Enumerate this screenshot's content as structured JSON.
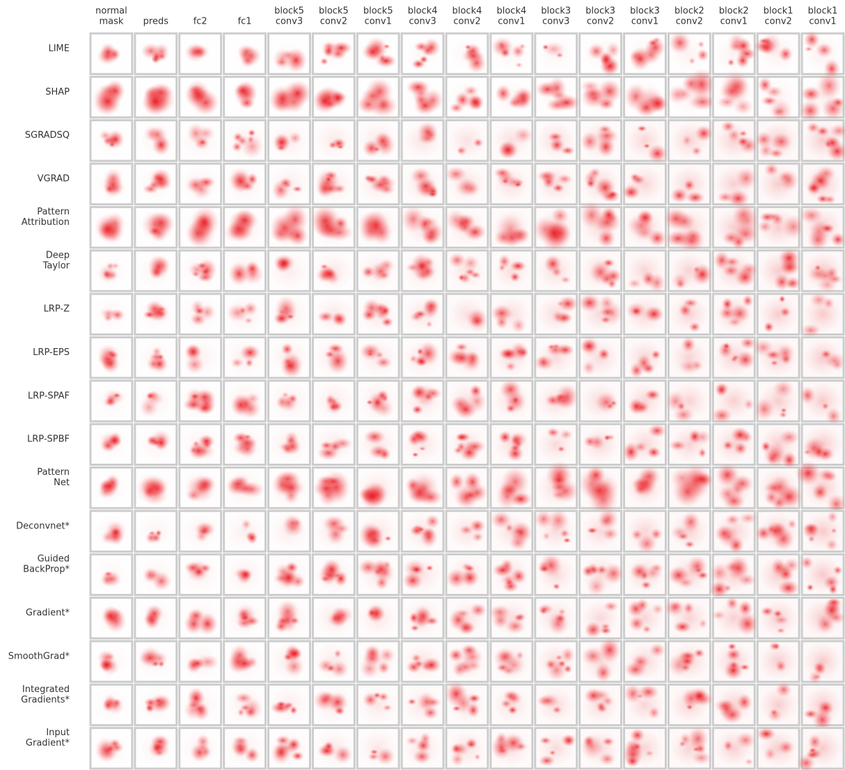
{
  "figure": {
    "columns": [
      [
        "normal",
        "mask"
      ],
      [
        "preds"
      ],
      [
        "fc2"
      ],
      [
        "fc1"
      ],
      [
        "block5",
        "conv3"
      ],
      [
        "block5",
        "conv2"
      ],
      [
        "block5",
        "conv1"
      ],
      [
        "block4",
        "conv3"
      ],
      [
        "block4",
        "conv2"
      ],
      [
        "block4",
        "conv1"
      ],
      [
        "block3",
        "conv3"
      ],
      [
        "block3",
        "conv2"
      ],
      [
        "block3",
        "conv1"
      ],
      [
        "block2",
        "conv2"
      ],
      [
        "block2",
        "conv1"
      ],
      [
        "block1",
        "conv2"
      ],
      [
        "block1",
        "conv1"
      ]
    ],
    "rows": [
      [
        "LIME"
      ],
      [
        "SHAP"
      ],
      [
        "SGRADSQ"
      ],
      [
        "VGRAD"
      ],
      [
        "Pattern",
        "Attribution"
      ],
      [
        "Deep",
        "Taylor"
      ],
      [
        "LRP-Z"
      ],
      [
        "LRP-EPS"
      ],
      [
        "LRP-SPAF"
      ],
      [
        "LRP-SPBF"
      ],
      [
        "Pattern",
        "Net"
      ],
      [
        "Deconvnet*"
      ],
      [
        "Guided",
        "BackProp*"
      ],
      [
        "Gradient*"
      ],
      [
        "SmoothGrad*"
      ],
      [
        "Integrated",
        "Gradients*"
      ],
      [
        "Input",
        "Gradient*"
      ]
    ]
  }
}
